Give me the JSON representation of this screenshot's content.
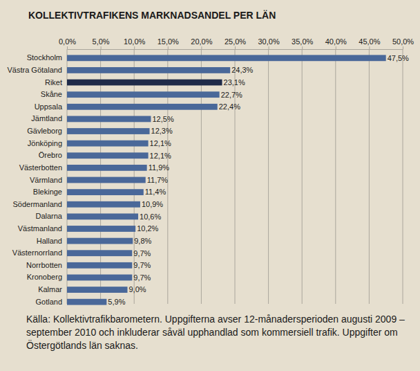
{
  "chart_data": {
    "type": "bar",
    "title": "KOLLEKTIVTRAFIKENS MARKNADSANDEL PER LÄN",
    "orientation": "horizontal",
    "grid": true,
    "data_labels": true,
    "categories": [
      "Stockholm",
      "Västra Götaland",
      "Riket",
      "Skåne",
      "Uppsala",
      "Jämtland",
      "Gävleborg",
      "Jönköping",
      "Örebro",
      "Västerbotten",
      "Värmland",
      "Blekinge",
      "Södermanland",
      "Dalarna",
      "Västmanland",
      "Halland",
      "Västernorrland",
      "Norrbotten",
      "Kronoberg",
      "Kalmar",
      "Gotland"
    ],
    "values": [
      47.5,
      24.3,
      23.1,
      22.7,
      22.4,
      12.5,
      12.3,
      12.1,
      12.1,
      11.9,
      11.7,
      11.4,
      10.9,
      10.6,
      10.2,
      9.8,
      9.7,
      9.7,
      9.7,
      9.0,
      5.9
    ],
    "value_labels": [
      "47,5%",
      "24,3%",
      "23,1%",
      "22,7%",
      "22,4%",
      "12,5%",
      "12,3%",
      "12,1%",
      "12,1%",
      "11,9%",
      "11,7%",
      "11,4%",
      "10,9%",
      "10,6%",
      "10,2%",
      "9,8%",
      "9,7%",
      "9,7%",
      "9,7%",
      "9,0%",
      "5,9%"
    ],
    "colors": [
      "#4a6899",
      "#4a6899",
      "#1f2b49",
      "#4a6899",
      "#4a6899",
      "#4a6899",
      "#4a6899",
      "#4a6899",
      "#4a6899",
      "#4a6899",
      "#4a6899",
      "#4a6899",
      "#4a6899",
      "#4a6899",
      "#4a6899",
      "#4a6899",
      "#4a6899",
      "#4a6899",
      "#4a6899",
      "#4a6899",
      "#4a6899"
    ],
    "xlim": [
      0,
      50
    ],
    "xticks": [
      {
        "value": 0,
        "label": "0,0%"
      },
      {
        "value": 5,
        "label": "5,0%"
      },
      {
        "value": 10,
        "label": "10,0%"
      },
      {
        "value": 15,
        "label": "15,0%"
      },
      {
        "value": 20,
        "label": "20,0%"
      },
      {
        "value": 25,
        "label": "25,0%"
      },
      {
        "value": 30,
        "label": "30,0%"
      },
      {
        "value": 35,
        "label": "35,0%"
      },
      {
        "value": 40,
        "label": "40,0%"
      },
      {
        "value": 45,
        "label": "45,0%"
      },
      {
        "value": 50,
        "label": "50,0%"
      }
    ],
    "annotations": [
      "Källa: Kollektivtrafikbarometern. Uppgifterna avser 12-månadersperioden augusti 2009 – september 2010 och inkluderar såväl upphandlad som kommersiell trafik. Uppgifter om Östergötlands län saknas."
    ]
  }
}
